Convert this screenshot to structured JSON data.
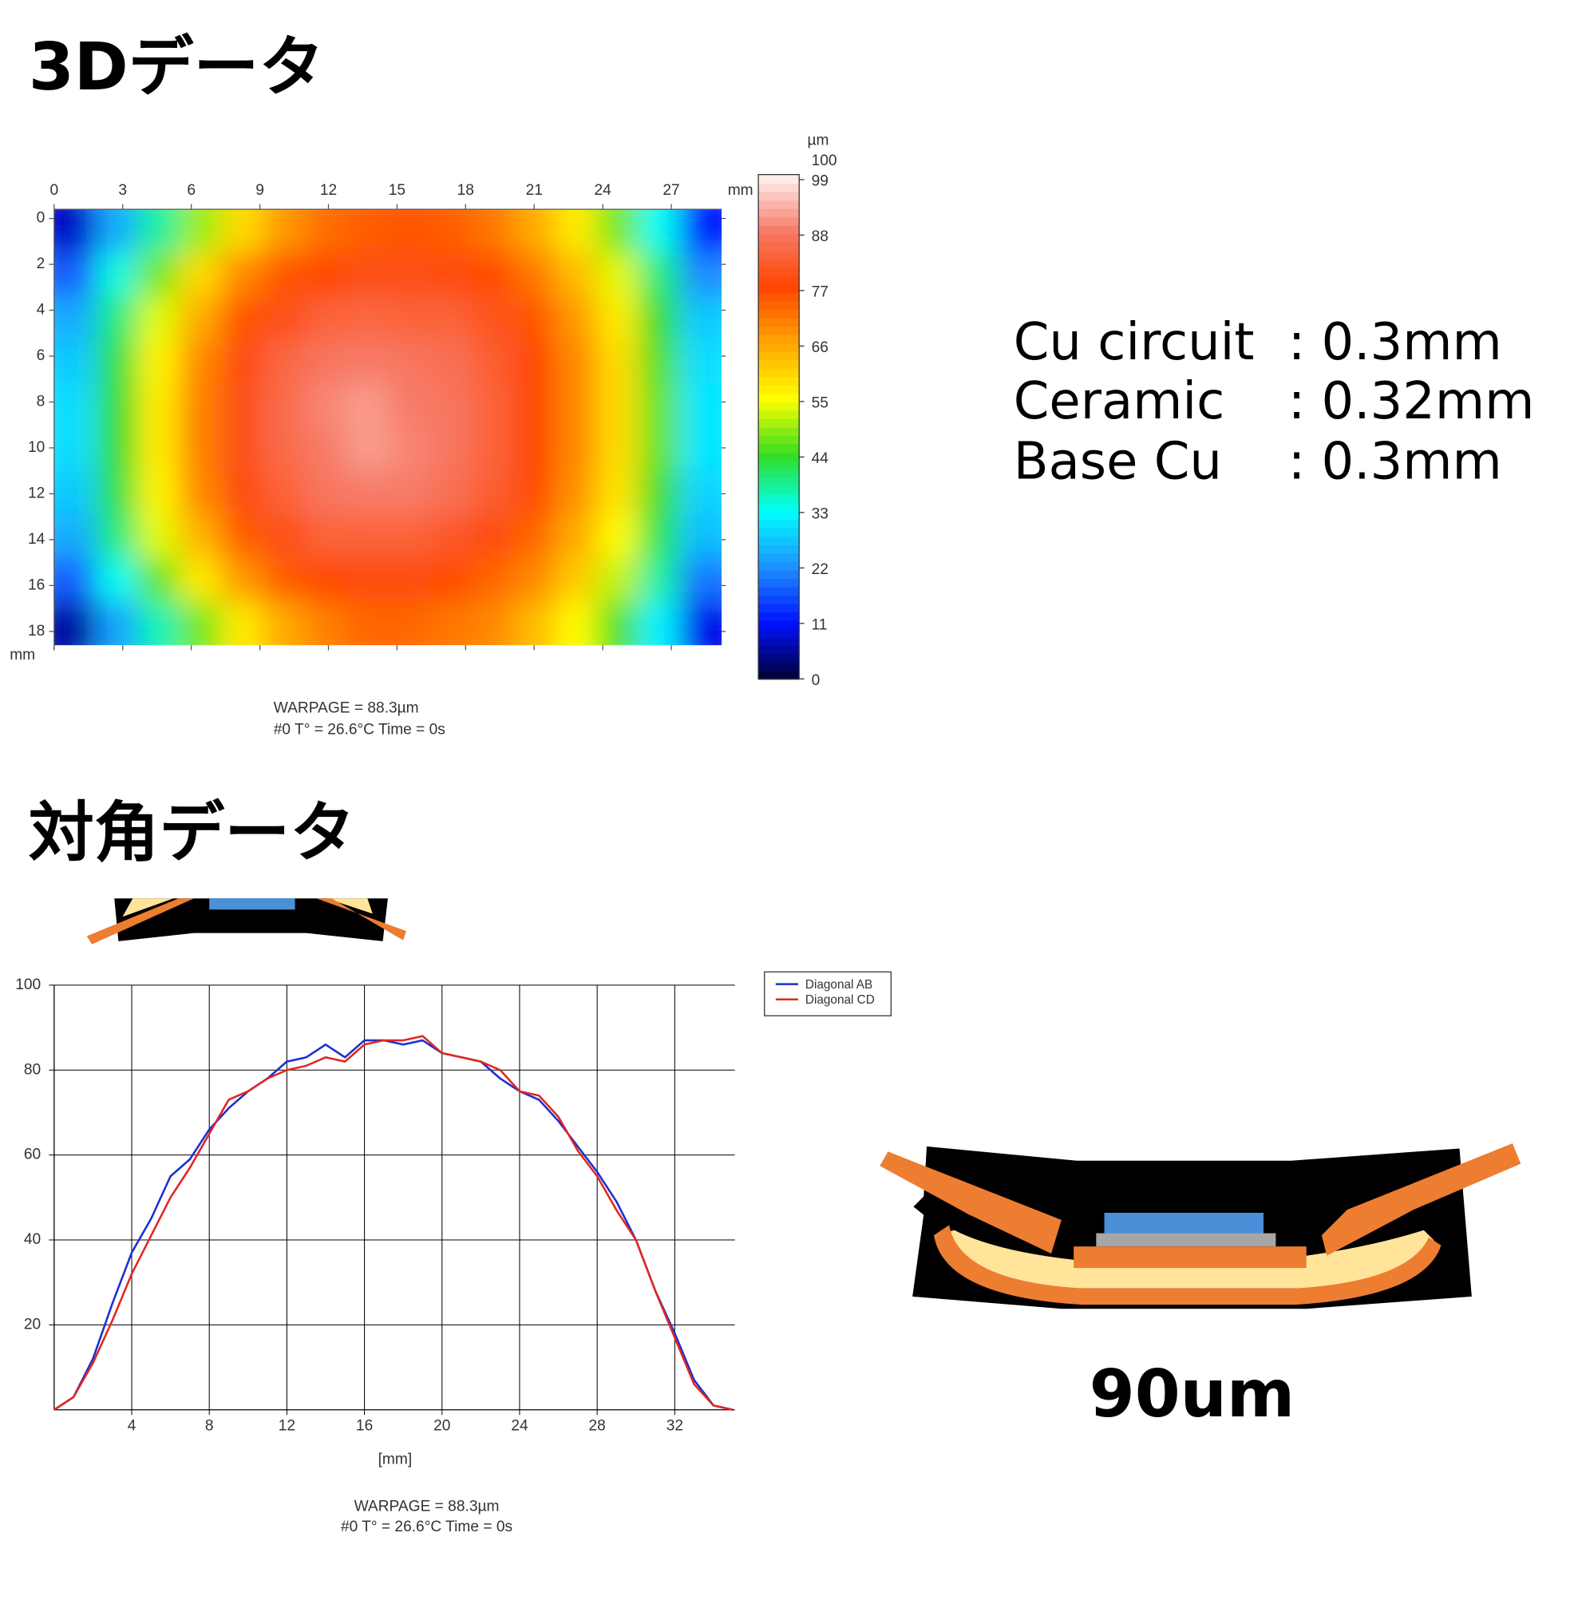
{
  "headings": [
    "3Dデータ",
    "対角データ"
  ],
  "specs": [
    [
      "Cu circuit",
      ": 0.3mm"
    ],
    [
      "Ceramic",
      ": 0.32mm"
    ],
    [
      "Base Cu",
      ": 0.3mm"
    ]
  ],
  "diagram_label": "90um",
  "chart_data": [
    {
      "type": "heatmap",
      "x_unit": "mm",
      "y_unit": "mm",
      "z_unit": "µm",
      "xlim": [
        0,
        29.2
      ],
      "xticks": [
        0,
        3,
        6,
        9,
        12,
        15,
        18,
        21,
        24,
        27
      ],
      "ylim": [
        -0.4,
        18.6
      ],
      "yticks": [
        0,
        2,
        4,
        6,
        8,
        10,
        12,
        14,
        16,
        18
      ],
      "zlim": [
        0,
        100
      ],
      "zticks": [
        0,
        11,
        22,
        33,
        44,
        55,
        66,
        77,
        88,
        99
      ],
      "colormap": [
        "#000033",
        "#0010ff",
        "#1e90ff",
        "#00ffff",
        "#33dd22",
        "#ffff00",
        "#ffa500",
        "#ff4500",
        "#f77a66",
        "#fff4f4"
      ],
      "z": [
        [
          8,
          25,
          38,
          50,
          60,
          68,
          73,
          75,
          76,
          75,
          72,
          66,
          58,
          48,
          34,
          12
        ],
        [
          18,
          35,
          48,
          60,
          70,
          76,
          78,
          80,
          80,
          79,
          77,
          72,
          64,
          54,
          40,
          22
        ],
        [
          25,
          40,
          54,
          66,
          76,
          80,
          84,
          85,
          84,
          84,
          81,
          76,
          68,
          58,
          44,
          28
        ],
        [
          28,
          43,
          57,
          70,
          79,
          85,
          88,
          89,
          88,
          87,
          83,
          78,
          70,
          60,
          46,
          30
        ],
        [
          30,
          44,
          58,
          71,
          80,
          86,
          90,
          92,
          89,
          88,
          84,
          78,
          70,
          60,
          47,
          31
        ],
        [
          30,
          44,
          58,
          71,
          80,
          86,
          89,
          92,
          90,
          88,
          84,
          78,
          70,
          60,
          47,
          31
        ],
        [
          28,
          43,
          57,
          70,
          79,
          84,
          88,
          89,
          89,
          87,
          83,
          77,
          69,
          59,
          45,
          29
        ],
        [
          25,
          40,
          54,
          65,
          75,
          80,
          84,
          84,
          84,
          82,
          79,
          74,
          66,
          56,
          42,
          27
        ],
        [
          18,
          34,
          47,
          58,
          68,
          75,
          78,
          79,
          79,
          77,
          74,
          70,
          62,
          52,
          38,
          20
        ],
        [
          6,
          24,
          37,
          48,
          58,
          66,
          71,
          74,
          74,
          72,
          70,
          64,
          56,
          46,
          32,
          10
        ]
      ],
      "notes": [
        "WARPAGE = 88.3µm",
        "#0   T° = 26.6°C   Time = 0s"
      ]
    },
    {
      "type": "line",
      "x_label": "[mm]",
      "grid": true,
      "xlim": [
        0,
        35.1
      ],
      "xticks": [
        4,
        8,
        12,
        16,
        20,
        24,
        28,
        32
      ],
      "ylim": [
        0,
        100
      ],
      "yticks": [
        20,
        40,
        60,
        80,
        100
      ],
      "x": [
        0,
        1,
        2,
        3,
        4,
        5,
        6,
        7,
        8,
        9,
        10,
        11,
        12,
        13,
        14,
        15,
        16,
        17,
        18,
        19,
        20,
        21,
        22,
        23,
        24,
        25,
        26,
        27,
        28,
        29,
        30,
        31,
        32,
        33,
        34,
        35
      ],
      "series": [
        {
          "name": "Diagonal AB",
          "color": "#1c2fd0",
          "values": [
            0,
            3,
            12,
            25,
            37,
            45,
            55,
            59,
            66,
            71,
            75,
            78,
            82,
            83,
            86,
            83,
            87,
            87,
            86,
            87,
            84,
            83,
            82,
            78,
            75,
            73,
            68,
            62,
            56,
            49,
            40,
            28,
            18,
            7,
            1,
            0
          ]
        },
        {
          "name": "Diagonal CD",
          "color": "#e0271f",
          "values": [
            0,
            3,
            11,
            21,
            32,
            41,
            50,
            57,
            65,
            73,
            75,
            78,
            80,
            81,
            83,
            82,
            86,
            87,
            87,
            88,
            84,
            83,
            82,
            80,
            75,
            74,
            69,
            61,
            55,
            47,
            40,
            28,
            17,
            6,
            1,
            0
          ]
        }
      ],
      "notes": [
        "WARPAGE = 88.3µm",
        "#0   T° = 26.6°C   Time = 0s"
      ]
    }
  ]
}
